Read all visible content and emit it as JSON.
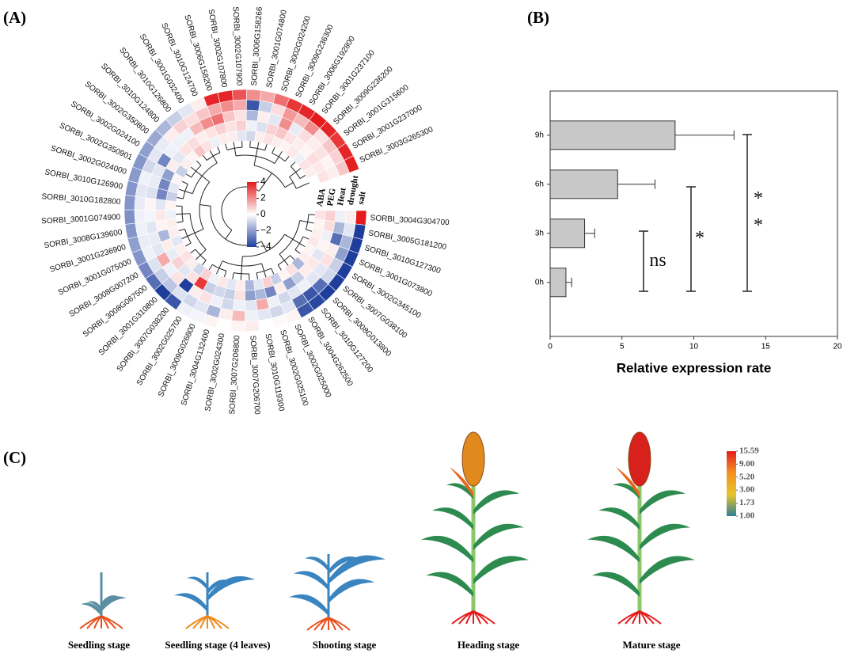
{
  "panel_labels": [
    "(A)",
    "(B)",
    "(C)"
  ],
  "chart_data": [
    {
      "type": "circular-heatmap",
      "conditions": [
        "ABA",
        "PEG",
        "Heat",
        "drought",
        "salt"
      ],
      "genes": [
        "SORBI_3004G304700",
        "SORBI_3005G181200",
        "SORBI_3010G127300",
        "SORBI_3001G073800",
        "SORBI_3002G345100",
        "SORBI_3007G038100",
        "SORBI_3008G013800",
        "SORBI_3010G127200",
        "SORBI_3004G262500",
        "SORBI_3002G025000",
        "SORBI_3002G025100",
        "SORBI_3010G119300",
        "SORBI_3007G206700",
        "SORBI_3007G206800",
        "SORBI_3002G024300",
        "SORBI_3004G132400",
        "SORBI_3009G026800",
        "SORBI_3002G025700",
        "SORBI_3007G038200",
        "SORBI_3001G310800",
        "SORBI_3008G067500",
        "SORBI_3008G007200",
        "SORBI_3001G075000",
        "SORBI_3001G236900",
        "SORBI_3008G139600",
        "SORBI_3001G074900",
        "SORBI_3010G182800",
        "SORBI_3010G126900",
        "SORBI_3002G024000",
        "SORBI_3002G350901",
        "SORBI_3002G024100",
        "SORBI_3002G350800",
        "SORBI_3010G124800",
        "SORBI_3010G126800",
        "SORBI_3001G032400",
        "SORBI_3010G124700",
        "SORBI_3006G158200",
        "SORBI_3002G107800",
        "SORBI_3002G107900",
        "SORBI_3006G158266",
        "SORBI_3001G074800",
        "SORBI_3002G024200",
        "SORBI_3009G236300",
        "SORBI_3006G192800",
        "SORBI_3001G237100",
        "SORBI_3009G236200",
        "SORBI_3001G315600",
        "SORBI_3001G237000",
        "SORBI_3003G265300"
      ],
      "values": [
        [
          0.5,
          0.8,
          -0.3,
          0.3,
          4
        ],
        [
          0.2,
          0.6,
          -1.5,
          -0.5,
          -4
        ],
        [
          0.3,
          -0.3,
          -3,
          -1.5,
          -4
        ],
        [
          0.4,
          0.2,
          0.3,
          -2,
          -4
        ],
        [
          0.2,
          -0.5,
          0.5,
          -1,
          -4
        ],
        [
          0.3,
          0.4,
          -0.5,
          -0.8,
          -4
        ],
        [
          -1.5,
          0.3,
          -0.5,
          -3,
          -4
        ],
        [
          0.5,
          -1,
          -0.3,
          -3.5,
          -3.8
        ],
        [
          0.2,
          -2,
          -0.5,
          -3,
          -3.5
        ],
        [
          -1,
          0.3,
          -0.8,
          -0.5,
          0.2
        ],
        [
          0.8,
          -2.5,
          -0.3,
          -0.8,
          0.1
        ],
        [
          -0.5,
          -1.5,
          1.5,
          -0.5,
          0
        ],
        [
          -1.5,
          -2,
          -0.5,
          -0.3,
          0.3
        ],
        [
          0.3,
          0.5,
          -0.3,
          1.2,
          0.2
        ],
        [
          -0.5,
          -1,
          -0.8,
          0.3,
          0
        ],
        [
          0.4,
          -0.8,
          -0.3,
          -1.5,
          0.2
        ],
        [
          -0.3,
          -1,
          0.5,
          -0.5,
          -0.2
        ],
        [
          0.8,
          3.5,
          0.3,
          -0.8,
          -0.3
        ],
        [
          -0.8,
          0.5,
          -4,
          -0.6,
          -3.5
        ],
        [
          0.3,
          -0.5,
          0.5,
          -1.2,
          -4
        ],
        [
          0.5,
          0.8,
          -0.3,
          -1,
          -3
        ],
        [
          0.3,
          -0.4,
          1.5,
          -0.6,
          -2.5
        ],
        [
          -0.5,
          0.3,
          -0.5,
          -0.3,
          -2.2
        ],
        [
          0.3,
          -1.5,
          -0.4,
          -0.4,
          -2
        ],
        [
          0.3,
          0.2,
          -0.5,
          -0.3,
          -2.2
        ],
        [
          -0.3,
          0.4,
          -0.2,
          -0.3,
          -2.3
        ],
        [
          0.2,
          -0.5,
          0.2,
          -0.4,
          -2.2
        ],
        [
          -1,
          -2.5,
          -0.6,
          -0.5,
          -2.2
        ],
        [
          -0.5,
          -2.5,
          -0.4,
          -0.3,
          -2.1
        ],
        [
          0.2,
          -2,
          -0.5,
          -0.8,
          -2.2
        ],
        [
          -1,
          0.3,
          -2.5,
          -0.5,
          -2
        ],
        [
          0.3,
          -0.5,
          -0.3,
          -0.4,
          -1.8
        ],
        [
          0.2,
          0.5,
          -0.3,
          0.3,
          -1.5
        ],
        [
          1,
          0.6,
          -0.3,
          0.8,
          -1
        ],
        [
          0.5,
          0.3,
          1.2,
          0.6,
          -0.5
        ],
        [
          -0.3,
          0.5,
          2,
          1,
          0.3
        ],
        [
          0.3,
          0.8,
          2.5,
          1.5,
          3.8
        ],
        [
          0.3,
          0.5,
          1,
          2,
          3.8
        ],
        [
          -0.5,
          0.8,
          0.5,
          1.5,
          3
        ],
        [
          -0.8,
          -0.3,
          -1.5,
          -3.5,
          2
        ],
        [
          0.3,
          -0.6,
          0.3,
          -1,
          1.5
        ],
        [
          0.5,
          0.8,
          -0.5,
          0.6,
          2.5
        ],
        [
          0.3,
          1,
          2,
          1.8,
          3.5
        ],
        [
          0.2,
          0.5,
          -0.4,
          1.2,
          3.8
        ],
        [
          0.4,
          0.3,
          0.6,
          2,
          4
        ],
        [
          -0.3,
          0.2,
          0.3,
          0.5,
          3.8
        ],
        [
          0.5,
          0.6,
          0.5,
          1,
          3.5
        ],
        [
          0.3,
          0.4,
          0.2,
          0.8,
          3.8
        ],
        [
          0,
          0.5,
          0.3,
          1,
          3.9
        ]
      ],
      "colorbar": {
        "lim": [
          -4,
          4
        ],
        "ticks": [
          4,
          2,
          0,
          {
            "value": -2,
            "label": "−2"
          },
          {
            "value": -4,
            "label": "−4"
          }
        ],
        "colors": [
          "#1f3e9c",
          "#ffffff",
          "#e41a1c"
        ]
      }
    },
    {
      "type": "bar",
      "orientation": "horizontal",
      "categories": [
        "0h",
        "3h",
        "6h",
        "9h"
      ],
      "values": [
        1.1,
        2.4,
        4.7,
        8.7
      ],
      "errors": [
        0.4,
        0.7,
        2.6,
        4.1
      ],
      "color": "#c8c8c8",
      "xlim": [
        0,
        20
      ],
      "xticks": [
        0,
        5,
        10,
        15,
        20
      ],
      "xlabel": "Relative expression rate",
      "annotations": [
        "ns",
        "*",
        "* *"
      ]
    },
    {
      "type": "colorbar",
      "scale": "log",
      "lim": [
        1,
        15.59
      ],
      "ticks": [
        15.59,
        {
          "value": 9,
          "label": "9.00"
        },
        {
          "value": 5.2,
          "label": "5.20"
        },
        {
          "value": 3,
          "label": "3.00"
        },
        1.73,
        {
          "value": 1,
          "label": "1.00"
        }
      ],
      "colors": [
        "#2f7f94",
        "#e8c42a",
        "#f39222",
        "#e31d1c"
      ]
    }
  ],
  "stages": [
    "Seedling stage",
    "Seedling stage (4 leaves)",
    "Shooting stage",
    "Heading stage",
    "Mature stage"
  ]
}
